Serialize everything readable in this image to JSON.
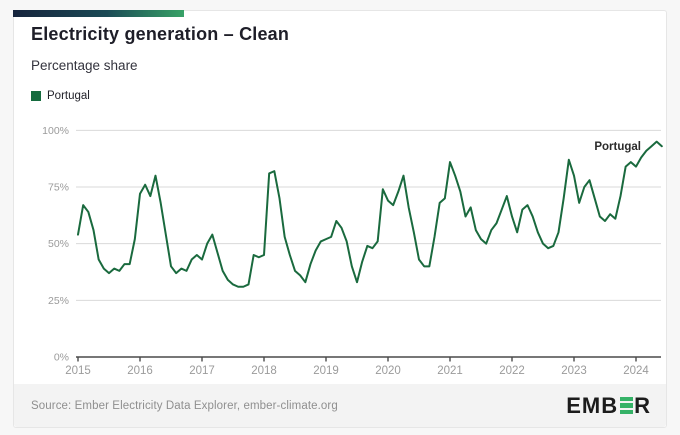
{
  "header": {
    "title": "Electricity generation – Clean",
    "subtitle": "Percentage share"
  },
  "legend": {
    "items": [
      {
        "label": "Portugal",
        "color": "#156b3e"
      }
    ]
  },
  "chart_data": {
    "type": "line",
    "title": "Electricity generation – Clean",
    "ylabel": "Percentage share",
    "unit": "%",
    "x_start": "2015-01",
    "x_end": "2024-06",
    "x_interval": "month",
    "x_tick_labels": [
      "2015",
      "2016",
      "2017",
      "2018",
      "2019",
      "2020",
      "2021",
      "2022",
      "2023",
      "2024"
    ],
    "y_ticks": [
      0,
      25,
      50,
      75,
      100
    ],
    "y_tick_labels": [
      "0%",
      "25%",
      "50%",
      "75%",
      "100%"
    ],
    "ylim": [
      0,
      100
    ],
    "grid": "horizontal",
    "legend_position": "top-left",
    "end_label": "Portugal",
    "series": [
      {
        "name": "Portugal",
        "color": "#1a6a3e",
        "values": [
          54,
          67,
          64,
          56,
          43,
          39,
          37,
          39,
          38,
          41,
          41,
          52,
          72,
          76,
          71,
          80,
          68,
          54,
          40,
          37,
          39,
          38,
          43,
          45,
          43,
          50,
          54,
          46,
          38,
          34,
          32,
          31,
          31,
          32,
          45,
          44,
          45,
          81,
          82,
          70,
          53,
          45,
          38,
          36,
          33,
          41,
          47,
          51,
          52,
          53,
          60,
          57,
          51,
          40,
          33,
          42,
          49,
          48,
          51,
          74,
          69,
          67,
          73,
          80,
          66,
          55,
          43,
          40,
          40,
          53,
          68,
          70,
          86,
          80,
          73,
          62,
          66,
          56,
          52,
          50,
          56,
          59,
          65,
          71,
          62,
          55,
          65,
          67,
          62,
          55,
          50,
          48,
          49,
          55,
          70,
          87,
          80,
          68,
          75,
          78,
          70,
          62,
          60,
          63,
          61,
          71,
          84,
          86,
          84,
          88,
          91,
          93,
          95,
          93
        ]
      }
    ]
  },
  "footer": {
    "source": "Source: Ember Electricity Data Explorer, ember-climate.org",
    "logo": {
      "text_left": "EMB",
      "text_right": "R",
      "bar_color": "#35b267"
    }
  },
  "colors": {
    "accent_line": "#1a6a3e",
    "grid": "#d9d9d9",
    "axis": "#4a4a4a",
    "tick_label": "#9b9b9b",
    "footer_bg": "#f3f3f3",
    "topbar_start": "#16243d",
    "topbar_end": "#38a267"
  }
}
